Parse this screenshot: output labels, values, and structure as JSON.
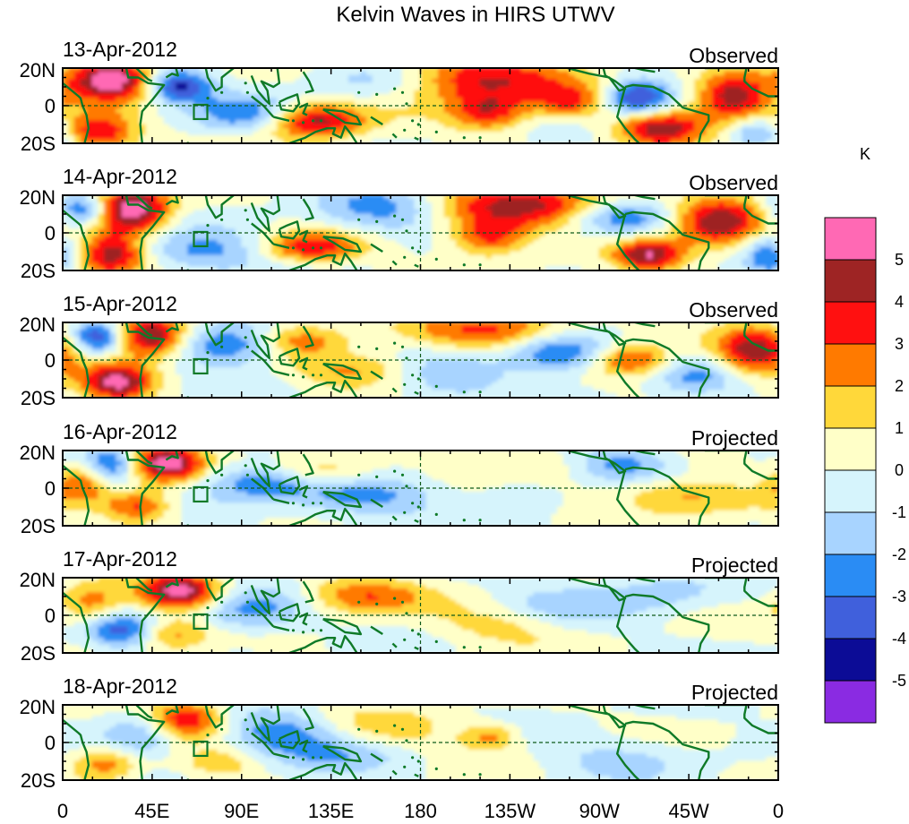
{
  "chart_data": {
    "type": "heatmap",
    "title": "Kelvin Waves in HIRS UTWV",
    "unit": "K",
    "x_ticks": [
      "0",
      "45E",
      "90E",
      "135E",
      "180",
      "135W",
      "90W",
      "45W",
      "0"
    ],
    "y_ticks": [
      "20N",
      "0",
      "20S"
    ],
    "xlim": [
      0,
      360
    ],
    "ylim": [
      -20,
      20
    ],
    "panels": [
      {
        "date": "13-Apr-2012",
        "kind": "Observed"
      },
      {
        "date": "14-Apr-2012",
        "kind": "Observed"
      },
      {
        "date": "15-Apr-2012",
        "kind": "Observed"
      },
      {
        "date": "16-Apr-2012",
        "kind": "Projected"
      },
      {
        "date": "17-Apr-2012",
        "kind": "Projected"
      },
      {
        "date": "18-Apr-2012",
        "kind": "Projected"
      }
    ],
    "colorbar": {
      "labels": [
        "5",
        "4",
        "3",
        "2",
        "1",
        "0",
        "-1",
        "-2",
        "-3",
        "-4",
        "-5"
      ],
      "colors": [
        "#ff69b4",
        "#9e2424",
        "#ff1010",
        "#ff7a00",
        "#ffd83a",
        "#ffffc8",
        "#d6f4fc",
        "#a8d4ff",
        "#2a8cf4",
        "#4060dc",
        "#0c0c96",
        "#8a2be2"
      ]
    }
  }
}
